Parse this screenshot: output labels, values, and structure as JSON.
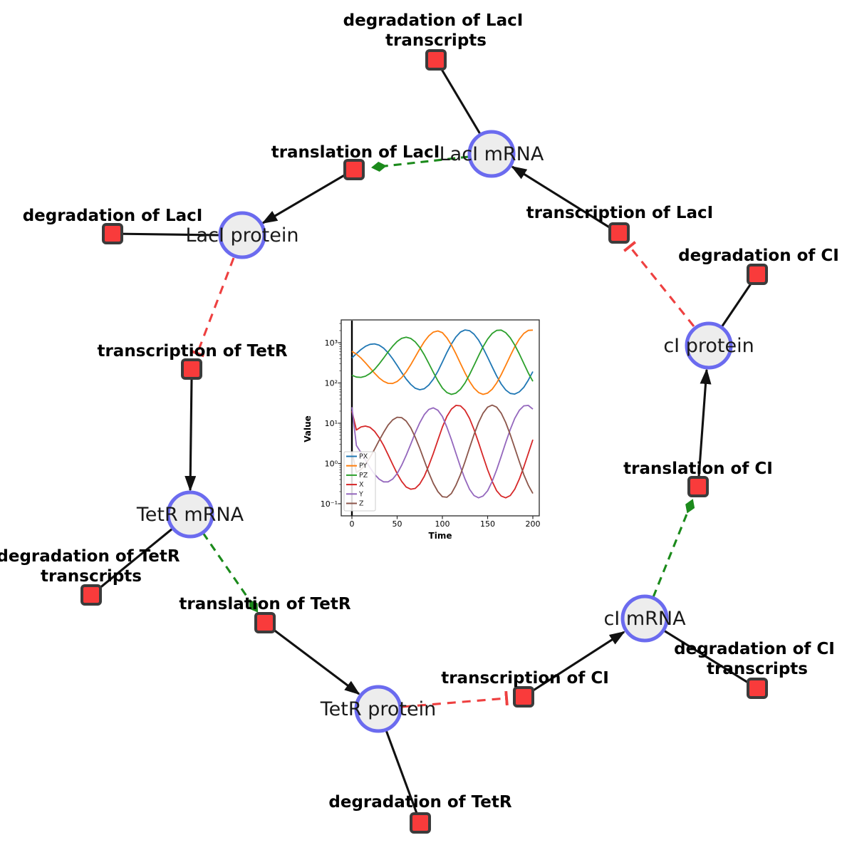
{
  "diagram": {
    "species": [
      {
        "label": "LacI mRNA"
      },
      {
        "label": "LacI protein"
      },
      {
        "label": "TetR mRNA"
      },
      {
        "label": "TetR protein"
      },
      {
        "label": "cI mRNA"
      },
      {
        "label": "cI protein"
      }
    ],
    "reactions": [
      {
        "lines": [
          "degradation of LacI",
          "transcripts"
        ]
      },
      {
        "lines": [
          "translation of LacI"
        ]
      },
      {
        "lines": [
          "degradation of LacI"
        ]
      },
      {
        "lines": [
          "transcription of LacI"
        ]
      },
      {
        "lines": [
          "degradation of CI"
        ]
      },
      {
        "lines": [
          "transcription of TetR"
        ]
      },
      {
        "lines": [
          "translation of CI"
        ]
      },
      {
        "lines": [
          "degradation of TetR",
          "transcripts"
        ]
      },
      {
        "lines": [
          "translation of TetR"
        ]
      },
      {
        "lines": [
          "transcription of CI"
        ]
      },
      {
        "lines": [
          "degradation of CI",
          "transcripts"
        ]
      },
      {
        "lines": [
          "degradation of TetR"
        ]
      }
    ],
    "colors": {
      "species_fill": "#EDEDED",
      "species_stroke": "#6B6BEF",
      "reaction_fill": "#F93B3B",
      "reaction_stroke": "#3B3B3B",
      "production": "#111111",
      "modifier": "#1B8A1B",
      "inhibition": "#EE4040"
    }
  },
  "chart_data": {
    "type": "line",
    "title": "",
    "xlabel": "Time",
    "ylabel": "Value",
    "yscale": "log",
    "xlim": [
      0,
      200
    ],
    "ylim": [
      0.1,
      3500
    ],
    "grid": false,
    "legend_position": "lower left",
    "xticks": [
      0,
      50,
      100,
      150,
      200
    ],
    "xtick_labels": [
      "0",
      "50",
      "100",
      "150",
      "200"
    ],
    "ytick_labels": [
      "10³",
      "10²",
      "10¹",
      "10⁰",
      "10⁻¹"
    ],
    "t0_spike": true,
    "x": [
      0,
      5,
      10,
      15,
      20,
      25,
      30,
      35,
      40,
      45,
      50,
      55,
      60,
      65,
      70,
      75,
      80,
      85,
      90,
      95,
      100,
      105,
      110,
      115,
      120,
      125,
      130,
      135,
      140,
      145,
      150,
      155,
      160,
      165,
      170,
      175,
      180,
      185,
      190,
      195,
      200
    ],
    "series": [
      {
        "name": "PX",
        "color": "#1f77b4",
        "values": [
          420,
          537,
          675,
          811,
          910,
          936,
          871,
          734,
          562,
          400,
          272,
          182,
          125,
          92,
          74,
          68,
          72,
          89,
          124,
          195,
          331,
          570,
          934,
          1399,
          1841,
          2078,
          1995,
          1633,
          1161,
          736,
          436,
          252,
          149,
          94,
          67,
          55,
          53,
          60,
          78,
          117,
          192
        ]
      },
      {
        "name": "PY",
        "color": "#ff7f0e",
        "values": [
          608,
          520,
          416,
          317,
          235,
          175,
          134,
          110,
          98,
          97,
          109,
          136,
          189,
          284,
          445,
          701,
          1061,
          1479,
          1832,
          1959,
          1778,
          1324,
          873,
          527,
          305,
          178,
          110,
          75,
          58,
          52,
          56,
          70,
          100,
          161,
          273,
          472,
          793,
          1230,
          1698,
          2028,
          2061
        ]
      },
      {
        "name": "PZ",
        "color": "#2ca02c",
        "values": [
          155,
          140,
          138,
          147,
          172,
          218,
          294,
          415,
          590,
          819,
          1074,
          1282,
          1368,
          1279,
          1049,
          762,
          500,
          307,
          184,
          113,
          75,
          58,
          52,
          56,
          70,
          100,
          161,
          273,
          472,
          793,
          1230,
          1698,
          2028,
          2061,
          1778,
          1324,
          873,
          527,
          305,
          178,
          110
        ]
      },
      {
        "name": "X",
        "color": "#d62728",
        "values": [
          20,
          6.8,
          8.1,
          8.5,
          7.9,
          6.3,
          4.4,
          2.8,
          1.65,
          0.95,
          0.56,
          0.36,
          0.26,
          0.23,
          0.24,
          0.31,
          0.48,
          0.88,
          1.78,
          3.8,
          8.0,
          14.7,
          22.4,
          27.7,
          27.0,
          20.9,
          13.2,
          7.0,
          3.3,
          1.51,
          0.7,
          0.36,
          0.21,
          0.155,
          0.14,
          0.16,
          0.23,
          0.41,
          0.82,
          1.77,
          3.9
        ]
      },
      {
        "name": "Y",
        "color": "#9467bd",
        "values": [
          25,
          2.8,
          1.87,
          1.21,
          0.79,
          0.54,
          0.41,
          0.35,
          0.35,
          0.41,
          0.56,
          0.9,
          1.6,
          3.0,
          5.8,
          10.3,
          16.4,
          22.0,
          24.1,
          21.0,
          14.7,
          8.0,
          3.9,
          1.77,
          0.82,
          0.41,
          0.23,
          0.16,
          0.14,
          0.155,
          0.21,
          0.36,
          0.7,
          1.51,
          3.3,
          7.0,
          13.2,
          20.9,
          27.0,
          27.7,
          22.4
        ]
      },
      {
        "name": "Z",
        "color": "#8c564b",
        "values": [
          2,
          0.6,
          0.71,
          0.95,
          1.42,
          2.25,
          3.7,
          5.9,
          9.0,
          12.1,
          14.1,
          13.8,
          11.3,
          7.7,
          4.5,
          2.37,
          1.18,
          0.59,
          0.32,
          0.2,
          0.15,
          0.145,
          0.18,
          0.29,
          0.53,
          1.11,
          2.43,
          5.2,
          10.4,
          17.8,
          25.1,
          28.2,
          25.1,
          17.8,
          10.4,
          5.2,
          2.43,
          1.11,
          0.53,
          0.29,
          0.18
        ]
      }
    ]
  }
}
